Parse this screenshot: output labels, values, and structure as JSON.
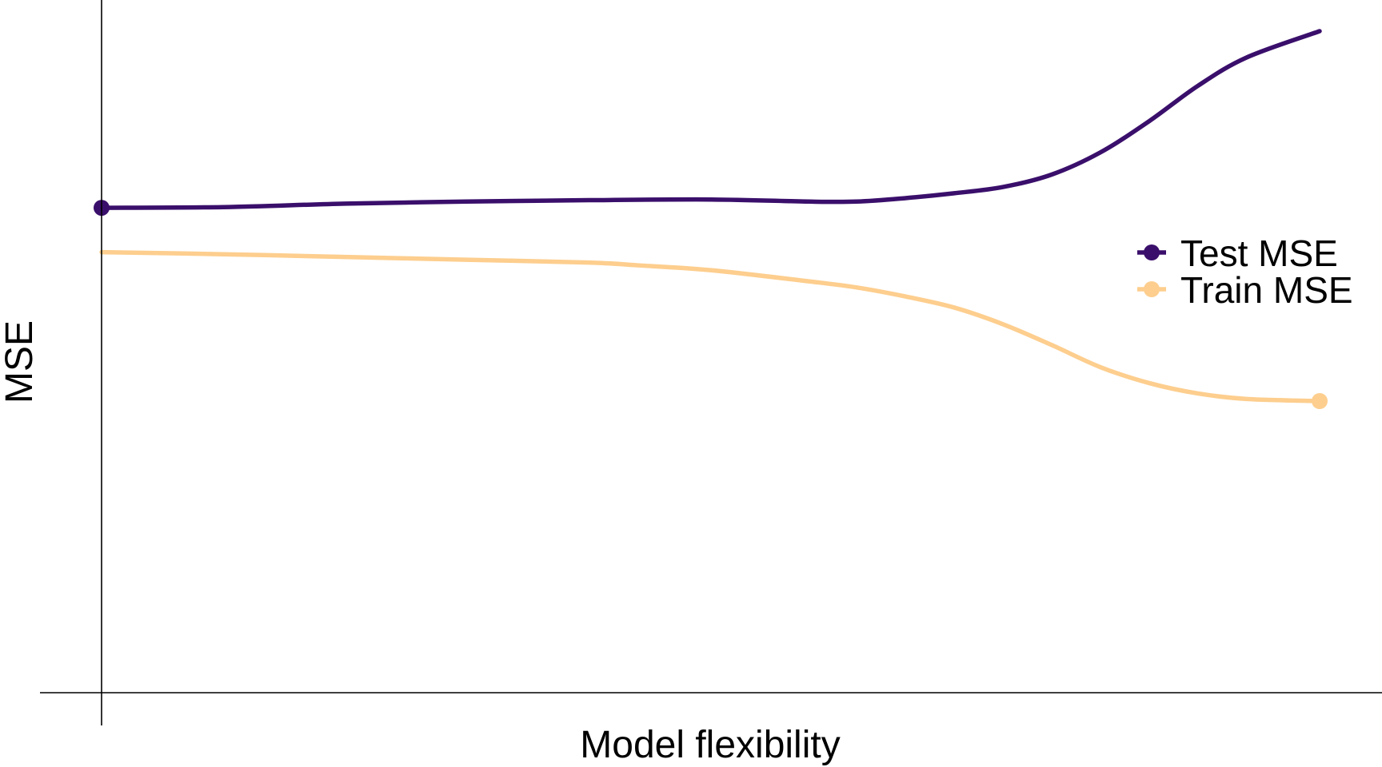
{
  "colors": {
    "test": "#3a0f6b",
    "train": "#fdce8e",
    "axis": "#000000",
    "background": "#ffffff"
  },
  "chart_data": {
    "type": "line",
    "title": "",
    "xlabel": "Model flexibility",
    "ylabel": "MSE",
    "grid": false,
    "legend_position": "right",
    "x_ticks_shown": false,
    "y_ticks_shown": false,
    "xlim": [
      0,
      1
    ],
    "ylim": [
      0,
      1
    ],
    "series": [
      {
        "name": "Test MSE",
        "color": "#3a0f6b",
        "endpoint_marker": "start",
        "x": [
          0.0,
          0.1,
          0.2,
          0.3,
          0.4,
          0.5,
          0.58,
          0.62,
          0.66,
          0.7,
          0.74,
          0.78,
          0.82,
          0.86,
          0.9,
          0.94,
          1.0
        ],
        "y": [
          0.7,
          0.701,
          0.706,
          0.709,
          0.711,
          0.712,
          0.709,
          0.709,
          0.714,
          0.721,
          0.73,
          0.748,
          0.78,
          0.825,
          0.876,
          0.917,
          0.955
        ]
      },
      {
        "name": "Train MSE",
        "color": "#fdce8e",
        "endpoint_marker": "end",
        "x": [
          0.0,
          0.1,
          0.2,
          0.3,
          0.4,
          0.44,
          0.5,
          0.58,
          0.62,
          0.66,
          0.7,
          0.74,
          0.78,
          0.82,
          0.86,
          0.9,
          0.94,
          1.0
        ],
        "y": [
          0.636,
          0.633,
          0.629,
          0.625,
          0.621,
          0.617,
          0.61,
          0.594,
          0.585,
          0.572,
          0.556,
          0.532,
          0.502,
          0.47,
          0.447,
          0.432,
          0.424,
          0.421
        ]
      }
    ]
  }
}
